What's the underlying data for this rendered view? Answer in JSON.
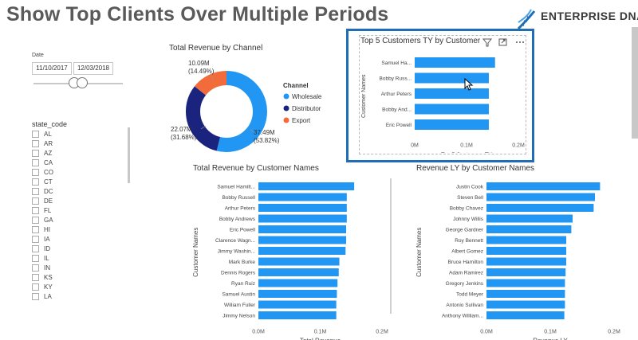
{
  "header": {
    "title": "Show Top Clients Over Multiple Periods",
    "brand": "ENTERPRISE DNA"
  },
  "date_slicer": {
    "label": "Date",
    "start": "11/10/2017",
    "end": "12/03/2018"
  },
  "state_slicer": {
    "header": "state_code",
    "items": [
      "AL",
      "AR",
      "AZ",
      "CA",
      "CO",
      "CT",
      "DC",
      "DE",
      "FL",
      "GA",
      "HI",
      "IA",
      "ID",
      "IL",
      "IN",
      "KS",
      "KY",
      "LA"
    ]
  },
  "donut": {
    "title": "Total Revenue by Channel",
    "legend_title": "Channel",
    "slices": [
      {
        "name": "Wholesale",
        "value": "37.49M",
        "pct": "(53.82%)",
        "share": 0.5382,
        "color": "#2196f3"
      },
      {
        "name": "Distributor",
        "value": "22.07M",
        "pct": "(31.68%)",
        "share": 0.3168,
        "color": "#1a237e"
      },
      {
        "name": "Export",
        "value": "10.09M",
        "pct": "(14.49%)",
        "share": 0.1449,
        "color": "#f26b3a"
      }
    ]
  },
  "top5": {
    "title": "Top 5 Customers TY by Customer Names",
    "ylabel": "Customer Names",
    "xlabel": "Top 5 Customers TY",
    "ticks": [
      "0M",
      "0.1M",
      "0.2M"
    ],
    "max": 0.2,
    "rows": [
      {
        "name": "Samuel Ha...",
        "value": 0.155
      },
      {
        "name": "Bobby Russ...",
        "value": 0.143
      },
      {
        "name": "Arthur Peters",
        "value": 0.143
      },
      {
        "name": "Bobby And...",
        "value": 0.143
      },
      {
        "name": "Eric Powell",
        "value": 0.143
      }
    ]
  },
  "revenue_chart": {
    "title": "Total Revenue by Customer Names",
    "ylabel": "Customer Names",
    "xlabel": "Total Revenue",
    "ticks": [
      "0.0M",
      "0.1M",
      "0.2M"
    ],
    "max": 0.2,
    "rows": [
      {
        "name": "Samuel Hamilt...",
        "value": 0.155
      },
      {
        "name": "Bobby Russell",
        "value": 0.143
      },
      {
        "name": "Arthur Peters",
        "value": 0.143
      },
      {
        "name": "Bobby Andrews",
        "value": 0.143
      },
      {
        "name": "Eric Powell",
        "value": 0.142
      },
      {
        "name": "Clarence Wagn...",
        "value": 0.142
      },
      {
        "name": "Jimmy Washin...",
        "value": 0.141
      },
      {
        "name": "Mark Burke",
        "value": 0.131
      },
      {
        "name": "Dennis Rogers",
        "value": 0.13
      },
      {
        "name": "Ryan Ruiz",
        "value": 0.128
      },
      {
        "name": "Samuel Austin",
        "value": 0.127
      },
      {
        "name": "William Fuller",
        "value": 0.126
      },
      {
        "name": "Jimmy Nelson",
        "value": 0.126
      }
    ]
  },
  "ly_chart": {
    "title": "Revenue LY by Customer Names",
    "ylabel": "Customer Names",
    "xlabel": "Revenue LY",
    "ticks": [
      "0.0M",
      "0.1M",
      "0.2M"
    ],
    "max": 0.2,
    "rows": [
      {
        "name": "Justin Cook",
        "value": 0.178
      },
      {
        "name": "Steven Bell",
        "value": 0.17
      },
      {
        "name": "Bobby Chavez",
        "value": 0.168
      },
      {
        "name": "Johnny Willis",
        "value": 0.135
      },
      {
        "name": "George Gardner",
        "value": 0.133
      },
      {
        "name": "Roy Bennett",
        "value": 0.125
      },
      {
        "name": "Albert Gomez",
        "value": 0.125
      },
      {
        "name": "Bruce Hamilton",
        "value": 0.125
      },
      {
        "name": "Adam Ramirez",
        "value": 0.124
      },
      {
        "name": "Gregory Jenkins",
        "value": 0.123
      },
      {
        "name": "Todd Meyer",
        "value": 0.123
      },
      {
        "name": "Antonio Sullivan",
        "value": 0.123
      },
      {
        "name": "Anthony William...",
        "value": 0.122
      }
    ]
  },
  "colors": {
    "bar": "#2196f3",
    "highlight": "#1f6db5"
  }
}
